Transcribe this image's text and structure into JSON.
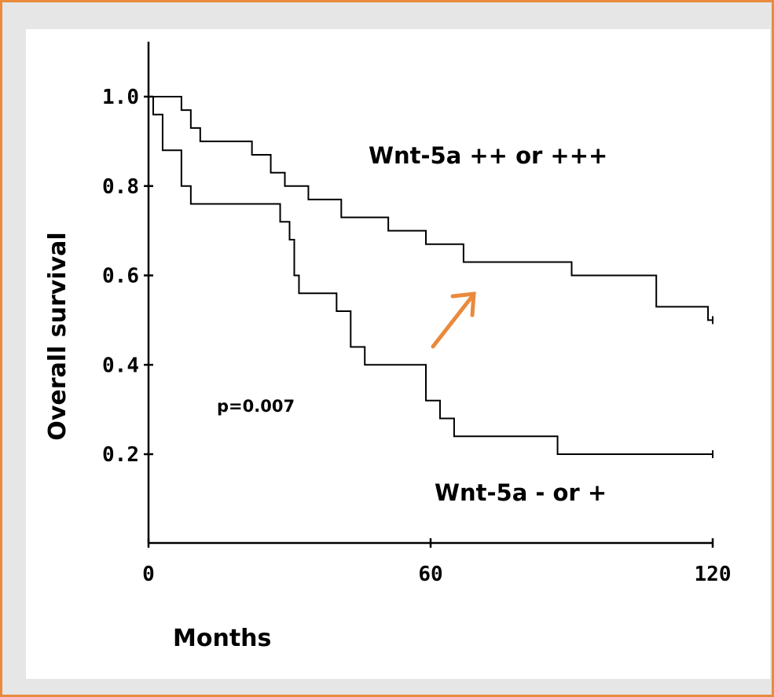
{
  "chart_data": {
    "type": "line",
    "title": "",
    "xlabel": "Months",
    "ylabel": "Overall survival",
    "xlim": [
      0,
      120
    ],
    "ylim": [
      0,
      1.12
    ],
    "x_ticks": [
      0,
      60,
      120
    ],
    "x_tick_labels": [
      "0",
      "60",
      "120"
    ],
    "y_ticks": [
      0.2,
      0.4,
      0.6,
      0.8,
      1.0
    ],
    "y_tick_labels": [
      "0.2",
      "0.4",
      "0.6",
      "0.8",
      "1.0"
    ],
    "grid": false,
    "series": [
      {
        "name": "Wnt-5a ++ or +++",
        "step": true,
        "x": [
          0,
          3,
          7,
          9,
          11,
          22,
          26,
          29,
          34,
          41,
          51,
          59,
          67,
          90,
          108,
          119,
          120
        ],
        "y": [
          1.0,
          1.0,
          0.97,
          0.93,
          0.9,
          0.87,
          0.83,
          0.8,
          0.77,
          0.73,
          0.7,
          0.67,
          0.63,
          0.6,
          0.53,
          0.5,
          0.5
        ]
      },
      {
        "name": "Wnt-5a - or +",
        "step": true,
        "x": [
          0,
          1,
          3,
          7,
          9,
          28,
          30,
          31,
          32,
          40,
          43,
          46,
          59,
          62,
          65,
          87,
          120
        ],
        "y": [
          1.0,
          0.96,
          0.88,
          0.8,
          0.76,
          0.72,
          0.68,
          0.6,
          0.56,
          0.52,
          0.44,
          0.4,
          0.32,
          0.28,
          0.24,
          0.2,
          0.2
        ]
      }
    ],
    "annotations": [
      "p=0.007"
    ]
  },
  "colors": {
    "frame": "#e98a3c",
    "arrow": "#e98a3c",
    "line": "#000000"
  },
  "icons": {
    "arrow": "arrow-up-right-icon"
  }
}
